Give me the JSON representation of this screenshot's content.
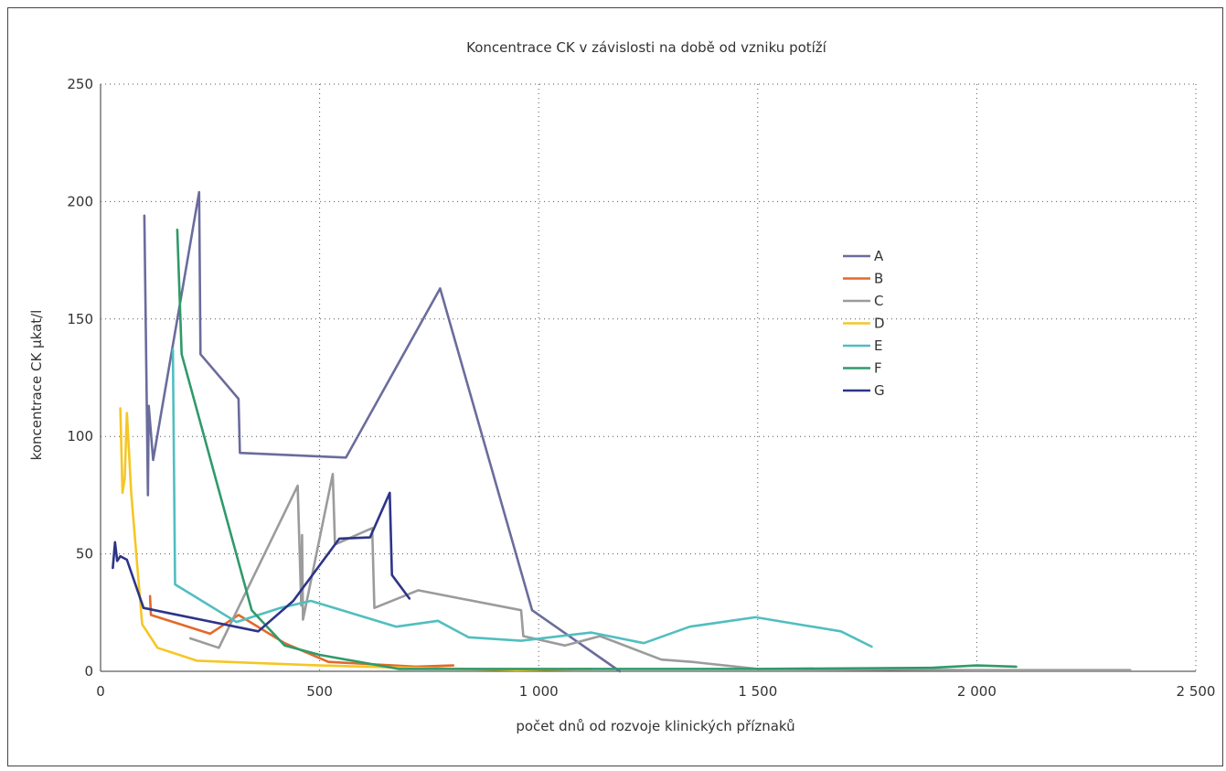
{
  "chart_data": {
    "type": "line",
    "title": "Koncentrace CK v závislosti na době od vzniku potíží",
    "xlabel": "počet dnů od rozvoje klinických příznaků",
    "ylabel": "koncentrace CK µkat/l",
    "xlim": [
      0,
      2500
    ],
    "ylim": [
      0,
      250
    ],
    "xticks": [
      0,
      500,
      1000,
      1500,
      2000,
      2500
    ],
    "xtick_labels": [
      "0",
      "500",
      "1 000",
      "1 500",
      "2 000",
      "2 500"
    ],
    "yticks": [
      0,
      50,
      100,
      150,
      200,
      250
    ],
    "ytick_labels": [
      "0",
      "50",
      "100",
      "150",
      "200",
      "250"
    ],
    "grid": "dotted",
    "legend_position": "right",
    "series": [
      {
        "name": "A",
        "color": "#6a6c9c",
        "points": [
          [
            100,
            194
          ],
          [
            108,
            75
          ],
          [
            110,
            113
          ],
          [
            120,
            90
          ],
          [
            225,
            204
          ],
          [
            228,
            135
          ],
          [
            315,
            116
          ],
          [
            318,
            93
          ],
          [
            560,
            91
          ],
          [
            775,
            163
          ],
          [
            985,
            26
          ],
          [
            1185,
            0
          ]
        ]
      },
      {
        "name": "B",
        "color": "#e2692a",
        "points": [
          [
            113,
            32
          ],
          [
            115,
            24
          ],
          [
            250,
            16
          ],
          [
            315,
            24
          ],
          [
            420,
            12
          ],
          [
            520,
            4
          ],
          [
            720,
            2
          ],
          [
            805,
            2.5
          ]
        ]
      },
      {
        "name": "C",
        "color": "#9b9b9b",
        "points": [
          [
            205,
            14
          ],
          [
            270,
            10
          ],
          [
            450,
            79
          ],
          [
            458,
            28
          ],
          [
            460,
            58
          ],
          [
            462,
            22
          ],
          [
            530,
            84
          ],
          [
            535,
            54
          ],
          [
            620,
            61
          ],
          [
            625,
            27
          ],
          [
            725,
            34.5
          ],
          [
            960,
            26
          ],
          [
            965,
            15
          ],
          [
            1060,
            11
          ],
          [
            1140,
            15
          ],
          [
            1280,
            5
          ],
          [
            1350,
            4
          ],
          [
            1500,
            1
          ],
          [
            2000,
            0.5
          ],
          [
            2350,
            0.5
          ]
        ]
      },
      {
        "name": "D",
        "color": "#f6c624",
        "points": [
          [
            45,
            112
          ],
          [
            50,
            76
          ],
          [
            55,
            82
          ],
          [
            60,
            110
          ],
          [
            70,
            76
          ],
          [
            95,
            20
          ],
          [
            130,
            10
          ],
          [
            220,
            4.5
          ],
          [
            500,
            2.5
          ],
          [
            700,
            1.5
          ],
          [
            950,
            0.5
          ],
          [
            1120,
            1
          ]
        ]
      },
      {
        "name": "E",
        "color": "#51bec0",
        "points": [
          [
            165,
            137
          ],
          [
            170,
            37
          ],
          [
            310,
            21
          ],
          [
            410,
            27
          ],
          [
            480,
            30
          ],
          [
            675,
            19
          ],
          [
            770,
            21.5
          ],
          [
            840,
            14.5
          ],
          [
            960,
            13
          ],
          [
            1120,
            16.5
          ],
          [
            1240,
            12
          ],
          [
            1345,
            19
          ],
          [
            1495,
            23
          ],
          [
            1690,
            17
          ],
          [
            1760,
            10.5
          ]
        ]
      },
      {
        "name": "F",
        "color": "#2f9a6a",
        "points": [
          [
            175,
            188
          ],
          [
            185,
            135
          ],
          [
            345,
            26
          ],
          [
            420,
            11
          ],
          [
            500,
            7
          ],
          [
            680,
            1
          ],
          [
            1000,
            1
          ],
          [
            1500,
            1
          ],
          [
            1900,
            1.5
          ],
          [
            2000,
            2.5
          ],
          [
            2090,
            2
          ]
        ]
      },
      {
        "name": "G",
        "color": "#2e3488",
        "points": [
          [
            28,
            44
          ],
          [
            33,
            55
          ],
          [
            38,
            47
          ],
          [
            45,
            49
          ],
          [
            60,
            47.5
          ],
          [
            98,
            27
          ],
          [
            150,
            25
          ],
          [
            360,
            17
          ],
          [
            440,
            30
          ],
          [
            545,
            56.5
          ],
          [
            615,
            57
          ],
          [
            660,
            76
          ],
          [
            665,
            41
          ],
          [
            705,
            31
          ]
        ]
      }
    ]
  }
}
